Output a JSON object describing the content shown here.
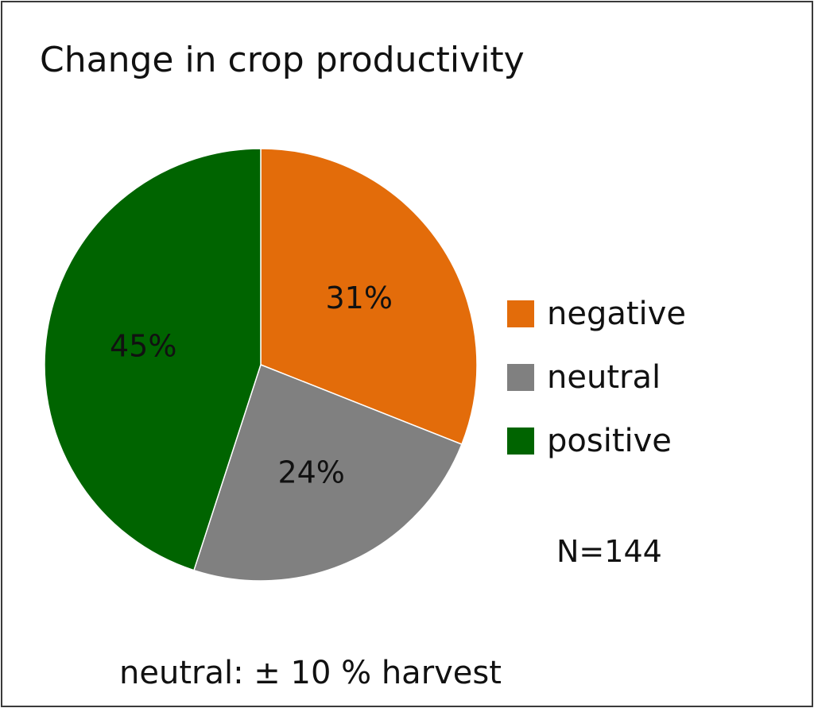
{
  "chart_data": {
    "type": "pie",
    "title": "Change in crop productivity",
    "categories": [
      "negative",
      "neutral",
      "positive"
    ],
    "values": [
      31,
      24,
      45
    ],
    "value_labels": [
      "31%",
      "24%",
      "45%"
    ],
    "colors": [
      "#e36c0a",
      "#808080",
      "#006400"
    ],
    "legend_position": "right",
    "start_angle": "top (12 o'clock)",
    "direction": "clockwise"
  },
  "annotations": {
    "sample_size": "N=144",
    "footnote": "neutral: ± 10 % harvest"
  }
}
